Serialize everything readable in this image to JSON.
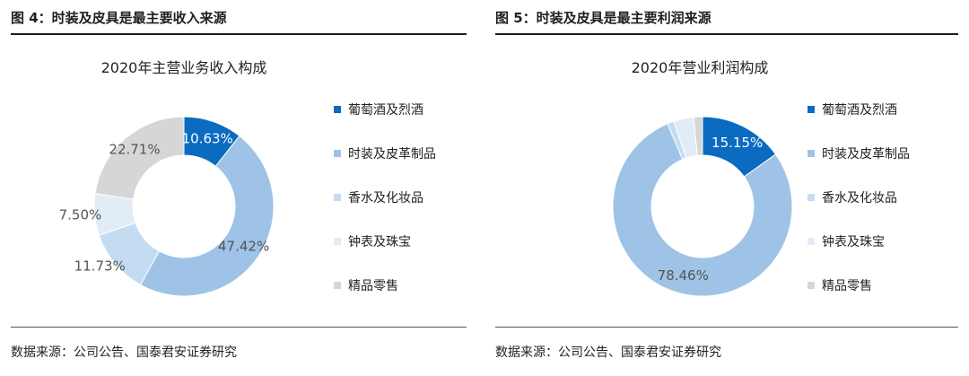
{
  "colors": {
    "wine": "#0a6bc0",
    "fashion": "#9ec3e6",
    "perfume": "#c4dcf1",
    "watches": "#e1ecf7",
    "retail": "#d6d6d6"
  },
  "left": {
    "figure_title": "图 4：时装及皮具是最主要收入来源",
    "source": "数据来源：公司公告、国泰君安证券研究"
  },
  "right": {
    "figure_title": "图 5：时装及皮具是最主要利润来源",
    "source": "数据来源：公司公告、国泰君安证券研究"
  },
  "chart_data": [
    {
      "type": "pie",
      "variant": "donut",
      "title": "2020年主营业务收入构成",
      "legend_position": "right",
      "categories": [
        "葡萄酒及烈酒",
        "时装及皮革制品",
        "香水及化妆品",
        "钟表及珠宝",
        "精品零售"
      ],
      "values": [
        10.63,
        47.42,
        11.73,
        7.5,
        22.71
      ],
      "value_labels": [
        "10.63%",
        "47.42%",
        "11.73%",
        "7.50%",
        "22.71%"
      ],
      "color_keys": [
        "wine",
        "fashion",
        "perfume",
        "watches",
        "retail"
      ]
    },
    {
      "type": "pie",
      "variant": "donut",
      "title": "2020年营业利润构成",
      "legend_position": "right",
      "categories": [
        "葡萄酒及烈酒",
        "时装及皮革制品",
        "香水及化妆品",
        "钟表及珠宝",
        "精品零售"
      ],
      "values": [
        15.15,
        78.46,
        1.2,
        3.6,
        1.59
      ],
      "value_labels": [
        "15.15%",
        "78.46%",
        "",
        "",
        ""
      ],
      "color_keys": [
        "wine",
        "fashion",
        "perfume",
        "watches",
        "retail"
      ]
    }
  ]
}
